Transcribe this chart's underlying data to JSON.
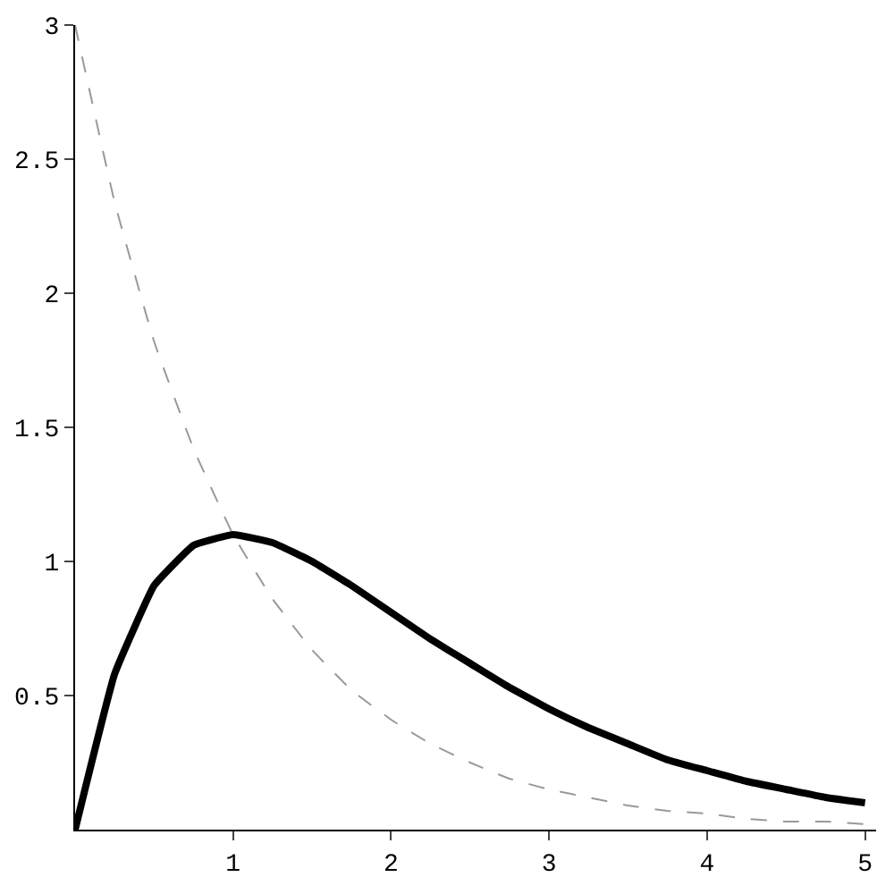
{
  "chart_data": {
    "type": "line",
    "x": [
      0,
      0.25,
      0.5,
      0.75,
      1,
      1.25,
      1.5,
      1.75,
      2,
      2.25,
      2.5,
      2.75,
      3,
      3.25,
      3.5,
      3.75,
      4,
      4.25,
      4.5,
      4.75,
      5
    ],
    "series": [
      {
        "color": "#000000",
        "line_style": "solid",
        "values": [
          0,
          0.58,
          0.91,
          1.06,
          1.1,
          1.07,
          1.0,
          0.91,
          0.81,
          0.71,
          0.62,
          0.53,
          0.45,
          0.38,
          0.32,
          0.26,
          0.22,
          0.18,
          0.15,
          0.12,
          0.1
        ]
      },
      {
        "color": "#999999",
        "line_style": "dashed",
        "values": [
          3,
          2.34,
          1.82,
          1.42,
          1.1,
          0.86,
          0.67,
          0.52,
          0.41,
          0.32,
          0.25,
          0.19,
          0.15,
          0.12,
          0.09,
          0.07,
          0.06,
          0.04,
          0.03,
          0.03,
          0.02
        ]
      }
    ],
    "xlim": [
      0,
      5.07
    ],
    "ylim": [
      0,
      3
    ],
    "xticks": [
      1,
      2,
      3,
      4,
      5
    ],
    "yticks": [
      0.5,
      1,
      1.5,
      2,
      2.5,
      3
    ],
    "marker": "none"
  }
}
